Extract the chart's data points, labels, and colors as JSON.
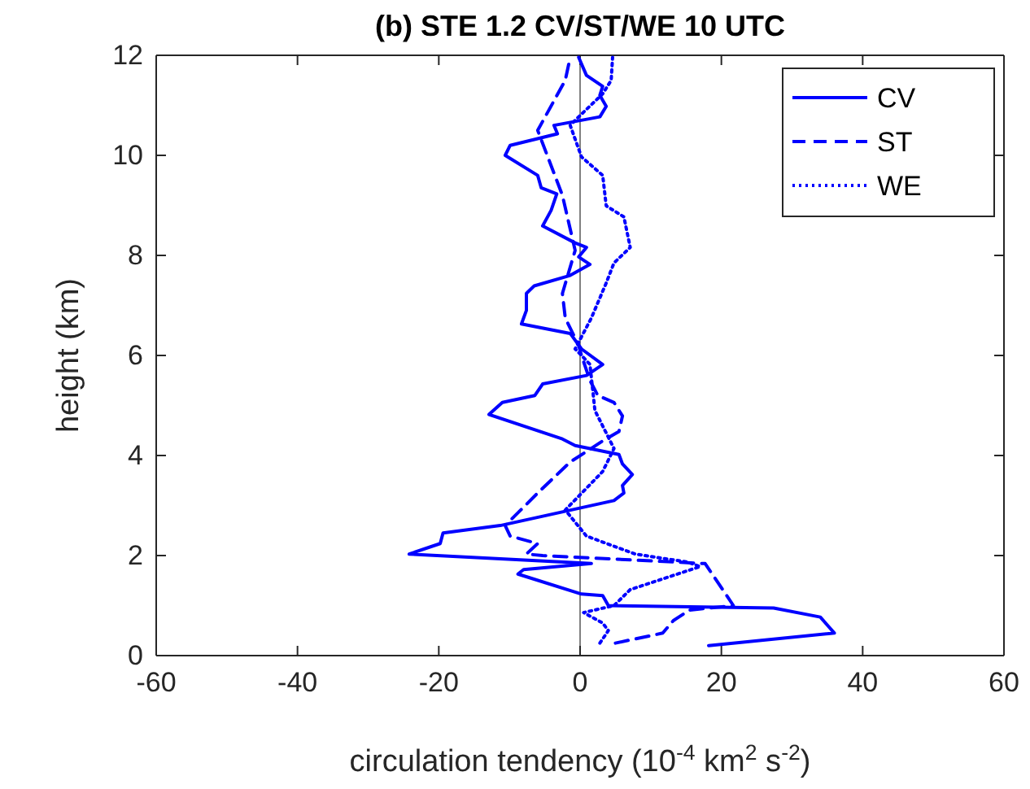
{
  "chart_data": {
    "type": "line",
    "title": "(b) STE 1.2 CV/ST/WE 10 UTC",
    "xlabel": "circulation tendency (10$^{-4}$ km$^{2}$ s$^{-2}$)",
    "ylabel": "height (km)",
    "xlim": [
      -60,
      60
    ],
    "xticks": [
      -60,
      -40,
      -20,
      0,
      20,
      40,
      60
    ],
    "ylim": [
      0,
      12
    ],
    "yticks": [
      0,
      2,
      4,
      6,
      8,
      10,
      12
    ],
    "grid": false,
    "legend": "top right",
    "marker": "none",
    "ref_lines": [
      {
        "axis": "x",
        "value": 0,
        "color": "#808080"
      }
    ],
    "series": [
      {
        "name": "CV",
        "color": "#0000ff",
        "line_style": "solid",
        "x": [
          18.2,
          36,
          34,
          27.4,
          4,
          3.2,
          0.2,
          -8.8,
          -8,
          1.6,
          -24.2,
          -19.8,
          -19.4,
          -11.3,
          4.8,
          6.2,
          6,
          7.4,
          6,
          5.5,
          -0.7,
          -2.5,
          -12.9,
          -11,
          -6.4,
          -5.3,
          0.9,
          3.2,
          0.2,
          -1.4,
          -8.3,
          -7.6,
          -7.6,
          -6.5,
          -1.4,
          1.4,
          -0.2,
          0.9,
          -0.7,
          -5.3,
          -4.1,
          -3.3,
          -5.5,
          -6,
          -10.6,
          -9.9,
          -3.2,
          -3.7,
          2.8,
          3.7,
          2.8,
          3.2,
          0.9,
          -0.2
        ],
        "values": [
          0.2,
          0.45,
          0.77,
          0.95,
          1.0,
          1.2,
          1.23,
          1.63,
          1.72,
          1.84,
          2.03,
          2.24,
          2.45,
          2.6,
          3.1,
          3.25,
          3.4,
          3.62,
          3.83,
          4.02,
          4.2,
          4.33,
          4.82,
          5.06,
          5.2,
          5.43,
          5.6,
          5.82,
          6.13,
          6.44,
          6.63,
          6.9,
          7.24,
          7.39,
          7.6,
          7.82,
          7.97,
          8.16,
          8.25,
          8.59,
          8.9,
          9.23,
          9.35,
          9.6,
          10.0,
          10.2,
          10.43,
          10.6,
          10.77,
          10.98,
          11.2,
          11.38,
          11.6,
          11.96
        ]
      },
      {
        "name": "ST",
        "color": "#0000ff",
        "line_style": "dashed",
        "x": [
          5,
          11.7,
          13.2,
          15.5,
          21.7,
          17.7,
          -5.3,
          -7.6,
          -6,
          -9.9,
          -10.6,
          -6,
          -1.4,
          3.2,
          5.5,
          6,
          4.8,
          2.5,
          1.4,
          0.2,
          -0.2,
          -2.1,
          -2.5,
          -0.7,
          -2.5,
          -6,
          -2.1,
          -1.4
        ],
        "values": [
          0.25,
          0.45,
          0.7,
          0.91,
          1.0,
          1.84,
          2.0,
          2.03,
          2.24,
          2.39,
          2.6,
          3.25,
          3.87,
          4.29,
          4.48,
          4.79,
          5.06,
          5.2,
          5.5,
          6.0,
          6.2,
          6.75,
          7.24,
          8.1,
          9.2,
          10.5,
          11.5,
          11.96
        ]
      },
      {
        "name": "WE",
        "color": "#0000ff",
        "line_style": "dotted",
        "x": [
          2.8,
          4,
          3.2,
          0.5,
          4.8,
          7.1,
          17,
          15.2,
          7.8,
          0.9,
          -2.1,
          3.2,
          4.8,
          2.1,
          1.4,
          0.2,
          -0.7,
          1.6,
          3.7,
          4.8,
          7.1,
          6.2,
          3.7,
          3.2,
          0.2,
          -1.4,
          -0.2,
          3.2,
          4.4,
          4.6
        ],
        "values": [
          0.25,
          0.5,
          0.65,
          0.86,
          1.0,
          1.32,
          1.78,
          1.87,
          2.03,
          2.39,
          2.91,
          3.68,
          4.14,
          4.9,
          5.82,
          6.0,
          6.13,
          6.75,
          7.45,
          7.85,
          8.16,
          8.77,
          8.99,
          9.6,
          9.97,
          10.6,
          10.77,
          11.23,
          11.5,
          11.96
        ]
      }
    ]
  }
}
